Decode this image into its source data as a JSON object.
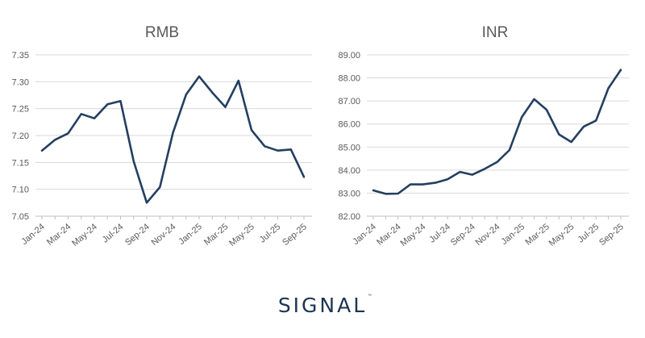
{
  "colors": {
    "series": "#243f60",
    "brand": "#1c3452"
  },
  "brand": {
    "name": "SIGNAL",
    "tm": "™"
  },
  "chart_data": [
    {
      "type": "line",
      "title": "RMB",
      "x": [
        "Jan-24",
        "Feb-24",
        "Mar-24",
        "Apr-24",
        "May-24",
        "Jun-24",
        "Jul-24",
        "Aug-24",
        "Sep-24",
        "Oct-24",
        "Nov-24",
        "Dec-24",
        "Jan-25",
        "Feb-25",
        "Mar-25",
        "Apr-25",
        "May-25",
        "Jun-25",
        "Jul-25",
        "Aug-25",
        "Sep-25"
      ],
      "x_tick_labels": [
        "Jan-24",
        "Mar-24",
        "May-24",
        "Jul-24",
        "Sep-24",
        "Nov-24",
        "Jan-25",
        "Mar-25",
        "May-25",
        "Jul-25",
        "Sep-25"
      ],
      "series": [
        {
          "values": [
            7.172,
            7.192,
            7.204,
            7.24,
            7.232,
            7.258,
            7.264,
            7.152,
            7.075,
            7.104,
            7.205,
            7.276,
            7.31,
            7.28,
            7.253,
            7.302,
            7.21,
            7.18,
            7.172,
            7.174,
            7.123
          ]
        }
      ],
      "ylim": [
        7.05,
        7.35
      ],
      "y_ticks": [
        "7.05",
        "7.10",
        "7.15",
        "7.20",
        "7.25",
        "7.30",
        "7.35"
      ],
      "grid": true,
      "xlabel": "",
      "ylabel": ""
    },
    {
      "type": "line",
      "title": "INR",
      "x": [
        "Jan-24",
        "Feb-24",
        "Mar-24",
        "Apr-24",
        "May-24",
        "Jun-24",
        "Jul-24",
        "Aug-24",
        "Sep-24",
        "Oct-24",
        "Nov-24",
        "Dec-24",
        "Jan-25",
        "Feb-25",
        "Mar-25",
        "Apr-25",
        "May-25",
        "Jun-25",
        "Jul-25",
        "Aug-25",
        "Sep-25"
      ],
      "x_tick_labels": [
        "Jan-24",
        "Mar-24",
        "May-24",
        "Jul-24",
        "Sep-24",
        "Nov-24",
        "Jan-25",
        "Mar-25",
        "May-25",
        "Jul-25",
        "Sep-25"
      ],
      "series": [
        {
          "values": [
            83.12,
            82.97,
            82.98,
            83.38,
            83.38,
            83.45,
            83.6,
            83.92,
            83.8,
            84.05,
            84.35,
            84.87,
            86.3,
            87.08,
            86.62,
            85.55,
            85.22,
            85.89,
            86.15,
            87.55,
            88.35
          ]
        }
      ],
      "ylim": [
        82.0,
        89.0
      ],
      "y_ticks": [
        "82.00",
        "83.00",
        "84.00",
        "85.00",
        "86.00",
        "87.00",
        "88.00",
        "89.00"
      ],
      "grid": true,
      "xlabel": "",
      "ylabel": ""
    }
  ]
}
